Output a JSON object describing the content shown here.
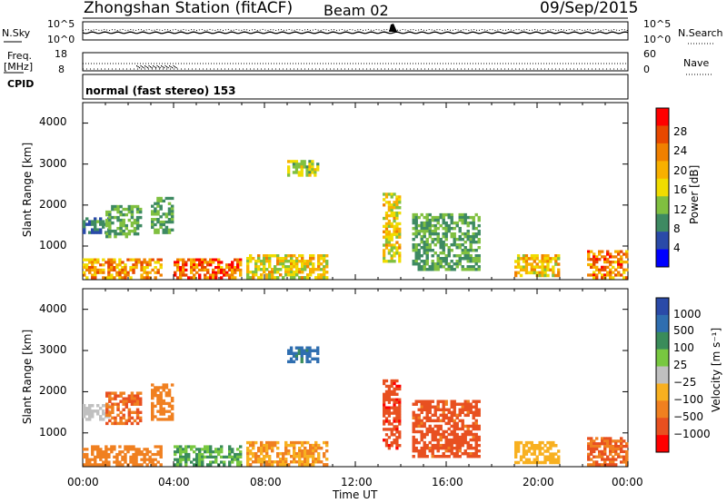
{
  "header": {
    "station": "Zhongshan Station (fitACF)",
    "beam": "Beam 02",
    "date": "09/Sep/2015"
  },
  "top_panels": {
    "nsky_label": "N.Sky",
    "nsky_ticks": [
      "10^5",
      "10^0"
    ],
    "nsearch_label": "N.Search",
    "nsearch_ticks": [
      "10^5",
      "10^0"
    ],
    "freq_label": "Freq.",
    "freq_unit": "[MHz]",
    "freq_ticks": [
      "18",
      "8"
    ],
    "nave_label": "Nave",
    "nave_ticks": [
      "60",
      "0"
    ],
    "cpid_label": "CPID",
    "cpid_text": "normal (fast stereo) 153"
  },
  "colors": {
    "power": [
      "#0000ff",
      "#2a4aa8",
      "#3e8a62",
      "#80c040",
      "#f0dc00",
      "#f8b000",
      "#f08000",
      "#e84800",
      "#ff0000"
    ],
    "velocity": [
      "#2a4aa8",
      "#2f6eb0",
      "#3a8c5a",
      "#78c840",
      "#c0c0c0",
      "#f8b020",
      "#f08020",
      "#e85020",
      "#ff0000"
    ]
  },
  "chart_data": [
    {
      "type": "heatmap",
      "name": "Power",
      "ylabel": "Slant Range [km]",
      "yticks": [
        "1000",
        "2000",
        "3000",
        "4000"
      ],
      "ylim": [
        180,
        4500
      ],
      "xlim": [
        0,
        24
      ],
      "xticks": [
        "00:00",
        "04:00",
        "08:00",
        "12:00",
        "16:00",
        "20:00",
        "00:00"
      ],
      "colorbar_label": "Power [dB]",
      "colorbar_ticks": [
        "4",
        "8",
        "12",
        "16",
        "20",
        "24",
        "28"
      ],
      "echo_regions": [
        {
          "t0": 0.0,
          "t1": 3.5,
          "r0": 200,
          "r1": 700,
          "level": 20
        },
        {
          "t0": 0.0,
          "t1": 1.2,
          "r0": 1300,
          "r1": 1700,
          "level": 8
        },
        {
          "t0": 1.0,
          "t1": 2.6,
          "r0": 1200,
          "r1": 2000,
          "level": 10
        },
        {
          "t0": 3.0,
          "t1": 4.0,
          "r0": 1300,
          "r1": 2200,
          "level": 10
        },
        {
          "t0": 4.0,
          "t1": 7.0,
          "r0": 200,
          "r1": 700,
          "level": 24
        },
        {
          "t0": 7.2,
          "t1": 10.8,
          "r0": 200,
          "r1": 800,
          "level": 16
        },
        {
          "t0": 9.0,
          "t1": 10.4,
          "r0": 2700,
          "r1": 3100,
          "level": 14
        },
        {
          "t0": 13.2,
          "t1": 14.0,
          "r0": 600,
          "r1": 2300,
          "level": 16
        },
        {
          "t0": 14.5,
          "t1": 17.5,
          "r0": 400,
          "r1": 1800,
          "level": 10
        },
        {
          "t0": 19.0,
          "t1": 21.0,
          "r0": 250,
          "r1": 800,
          "level": 18
        },
        {
          "t0": 22.2,
          "t1": 24.0,
          "r0": 200,
          "r1": 900,
          "level": 22
        }
      ]
    },
    {
      "type": "heatmap",
      "name": "Velocity",
      "ylabel": "Slant Range [km]",
      "yticks": [
        "1000",
        "2000",
        "3000",
        "4000"
      ],
      "ylim": [
        180,
        4500
      ],
      "xlim": [
        0,
        24
      ],
      "xticks": [
        "00:00",
        "04:00",
        "08:00",
        "12:00",
        "16:00",
        "20:00",
        "00:00"
      ],
      "xlabel": "Time UT",
      "colorbar_label": "Velocity [m s⁻¹]",
      "colorbar_ticks": [
        "1000",
        "500",
        "100",
        "25",
        "−25",
        "−100",
        "−500",
        "−1000"
      ],
      "echo_regions": [
        {
          "t0": 0.0,
          "t1": 3.5,
          "r0": 200,
          "r1": 700,
          "level": -150
        },
        {
          "t0": 0.0,
          "t1": 1.2,
          "r0": 1300,
          "r1": 1700,
          "level": 0
        },
        {
          "t0": 1.0,
          "t1": 2.6,
          "r0": 1200,
          "r1": 2000,
          "level": -300
        },
        {
          "t0": 3.0,
          "t1": 4.0,
          "r0": 1300,
          "r1": 2200,
          "level": -200
        },
        {
          "t0": 4.0,
          "t1": 7.0,
          "r0": 200,
          "r1": 700,
          "level": 60
        },
        {
          "t0": 7.2,
          "t1": 10.8,
          "r0": 200,
          "r1": 800,
          "level": -60
        },
        {
          "t0": 9.0,
          "t1": 10.4,
          "r0": 2700,
          "r1": 3100,
          "level": 400
        },
        {
          "t0": 13.2,
          "t1": 14.0,
          "r0": 600,
          "r1": 2300,
          "level": -600
        },
        {
          "t0": 14.5,
          "t1": 17.5,
          "r0": 400,
          "r1": 1800,
          "level": -400
        },
        {
          "t0": 19.0,
          "t1": 21.0,
          "r0": 250,
          "r1": 800,
          "level": -40
        },
        {
          "t0": 22.2,
          "t1": 24.0,
          "r0": 200,
          "r1": 900,
          "level": -300
        }
      ]
    }
  ]
}
